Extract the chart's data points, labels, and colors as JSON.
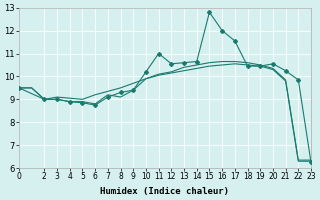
{
  "xlabel": "Humidex (Indice chaleur)",
  "ylabel": "",
  "bg_color": "#d6f0f0",
  "line_color": "#1a7a6e",
  "grid_color": "#ffffff",
  "xlim": [
    0,
    23
  ],
  "ylim": [
    6,
    13
  ],
  "xticks": [
    0,
    2,
    3,
    4,
    5,
    6,
    7,
    8,
    9,
    10,
    11,
    12,
    13,
    14,
    15,
    16,
    17,
    18,
    19,
    20,
    21,
    22,
    23
  ],
  "yticks": [
    6,
    7,
    8,
    9,
    10,
    11,
    12,
    13
  ],
  "line1_x": [
    0,
    1,
    2,
    3,
    4,
    5,
    6,
    7,
    8,
    9,
    10,
    11,
    12,
    13,
    14,
    15,
    16,
    17,
    18,
    19,
    20,
    21,
    22,
    23
  ],
  "line1_y": [
    9.5,
    9.5,
    9.0,
    9.0,
    8.9,
    8.9,
    8.8,
    9.2,
    9.1,
    9.4,
    9.9,
    10.05,
    10.15,
    10.25,
    10.35,
    10.45,
    10.5,
    10.55,
    10.5,
    10.45,
    10.3,
    9.8,
    6.3,
    6.3
  ],
  "line2_x": [
    0,
    1,
    2,
    3,
    4,
    5,
    6,
    7,
    8,
    9,
    10,
    11,
    12,
    13,
    14,
    15,
    16,
    17,
    18,
    19,
    20,
    21,
    22,
    23
  ],
  "line2_y": [
    9.5,
    9.5,
    9.0,
    9.1,
    9.05,
    9.0,
    9.2,
    9.35,
    9.5,
    9.7,
    9.9,
    10.1,
    10.2,
    10.4,
    10.5,
    10.6,
    10.65,
    10.65,
    10.6,
    10.5,
    10.35,
    9.85,
    6.35,
    6.35
  ],
  "line3_x": [
    0,
    2,
    3,
    4,
    5,
    6,
    7,
    8,
    9,
    10,
    11,
    12,
    13,
    14,
    15,
    16,
    17,
    18,
    19,
    20,
    21,
    22,
    23
  ],
  "line3_y": [
    9.5,
    9.0,
    9.0,
    8.9,
    8.85,
    8.75,
    9.1,
    9.3,
    9.4,
    10.2,
    11.0,
    10.55,
    10.6,
    10.65,
    12.8,
    12.0,
    11.55,
    10.45,
    10.45,
    10.55,
    10.25,
    9.85,
    6.25
  ]
}
